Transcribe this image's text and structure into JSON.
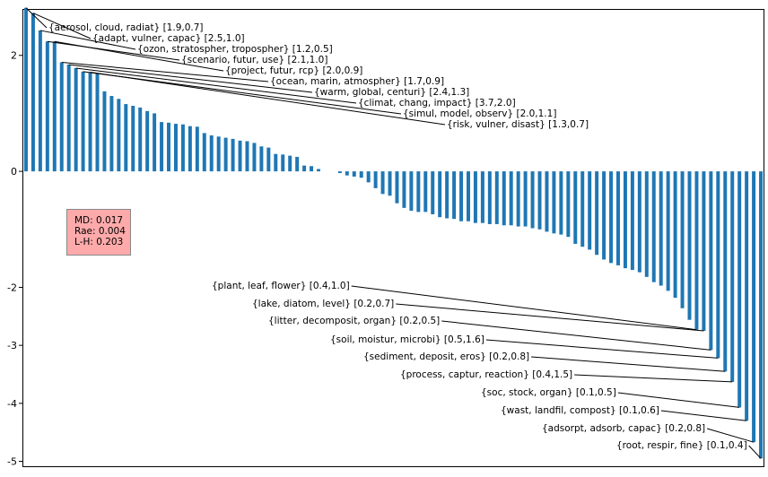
{
  "chart_data": {
    "type": "bar",
    "ylim": [
      -5.1,
      2.8
    ],
    "yticks": [
      {
        "value": 2,
        "label": "2"
      },
      {
        "value": 0,
        "label": "0"
      },
      {
        "value": -2,
        "label": "-2"
      },
      {
        "value": -3,
        "label": "-3"
      },
      {
        "value": -4,
        "label": "-4"
      },
      {
        "value": -5,
        "label": "-5"
      }
    ],
    "values": [
      2.82,
      2.73,
      2.43,
      2.24,
      2.24,
      1.88,
      1.84,
      1.78,
      1.72,
      1.71,
      1.69,
      1.38,
      1.3,
      1.25,
      1.16,
      1.13,
      1.1,
      1.04,
      1.0,
      0.85,
      0.84,
      0.82,
      0.81,
      0.78,
      0.77,
      0.66,
      0.62,
      0.6,
      0.58,
      0.56,
      0.53,
      0.52,
      0.49,
      0.43,
      0.41,
      0.3,
      0.29,
      0.27,
      0.25,
      0.1,
      0.09,
      0.04,
      0.0,
      0.0,
      -0.03,
      -0.07,
      -0.09,
      -0.11,
      -0.19,
      -0.29,
      -0.39,
      -0.42,
      -0.55,
      -0.63,
      -0.68,
      -0.7,
      -0.7,
      -0.74,
      -0.79,
      -0.81,
      -0.82,
      -0.86,
      -0.86,
      -0.89,
      -0.89,
      -0.91,
      -0.91,
      -0.93,
      -0.93,
      -0.95,
      -0.95,
      -0.98,
      -1.0,
      -1.04,
      -1.07,
      -1.09,
      -1.13,
      -1.25,
      -1.3,
      -1.35,
      -1.44,
      -1.52,
      -1.58,
      -1.62,
      -1.67,
      -1.7,
      -1.74,
      -1.82,
      -1.91,
      -1.97,
      -2.06,
      -2.18,
      -2.36,
      -2.56,
      -2.73,
      -2.75,
      -3.08,
      -3.22,
      -3.45,
      -3.63,
      -4.07,
      -4.3,
      -4.67,
      -4.95
    ],
    "annotations_top": [
      {
        "text": "{aerosol, cloud, radiat} [1.9,0.7]",
        "bar": 0
      },
      {
        "text": "{adapt, vulner, capac} [2.5,1.0]",
        "bar": 1
      },
      {
        "text": "{ozon, stratospher, tropospher} [1.2,0.5]",
        "bar": 2
      },
      {
        "text": "{scenario, futur, use} [2.1,1.0]",
        "bar": 3
      },
      {
        "text": "{project, futur, rcp} [2.0,0.9]",
        "bar": 4
      },
      {
        "text": "{ocean, marin, atmospher} [1.7,0.9]",
        "bar": 5
      },
      {
        "text": "{warm, global, centuri} [2.4,1.3]",
        "bar": 6
      },
      {
        "text": "{climat, chang, impact} [3.7,2.0]",
        "bar": 7
      },
      {
        "text": "{simul, model, observ} [2.0,1.1]",
        "bar": 8
      },
      {
        "text": "{risk, vulner, disast} [1.3,0.7]",
        "bar": 9
      }
    ],
    "annotations_bottom": [
      {
        "text": "{plant, leaf, flower} [0.4,1.0]",
        "bar": 94
      },
      {
        "text": "{lake, diatom, level} [0.2,0.7]",
        "bar": 95
      },
      {
        "text": "{litter, decomposit, organ} [0.2,0.5]",
        "bar": 96
      },
      {
        "text": "{soil, moistur, microbi} [0.5,1.6]",
        "bar": 97
      },
      {
        "text": "{sediment, deposit, eros} [0.2,0.8]",
        "bar": 98
      },
      {
        "text": "{process, captur, reaction} [0.4,1.5]",
        "bar": 99
      },
      {
        "text": "{soc, stock, organ} [0.1,0.5]",
        "bar": 100
      },
      {
        "text": "{wast, landfil, compost} [0.1,0.6]",
        "bar": 101
      },
      {
        "text": "{adsorpt, adsorb, capac} [0.2,0.8]",
        "bar": 102
      },
      {
        "text": "{root, respir, fine} [0.1,0.4]",
        "bar": 103
      }
    ],
    "stats": [
      "MD: 0.017",
      "Rae: 0.004",
      "L-H: 0.203"
    ],
    "bar_color": "#1f77b4",
    "grid": false,
    "legend": "none"
  }
}
